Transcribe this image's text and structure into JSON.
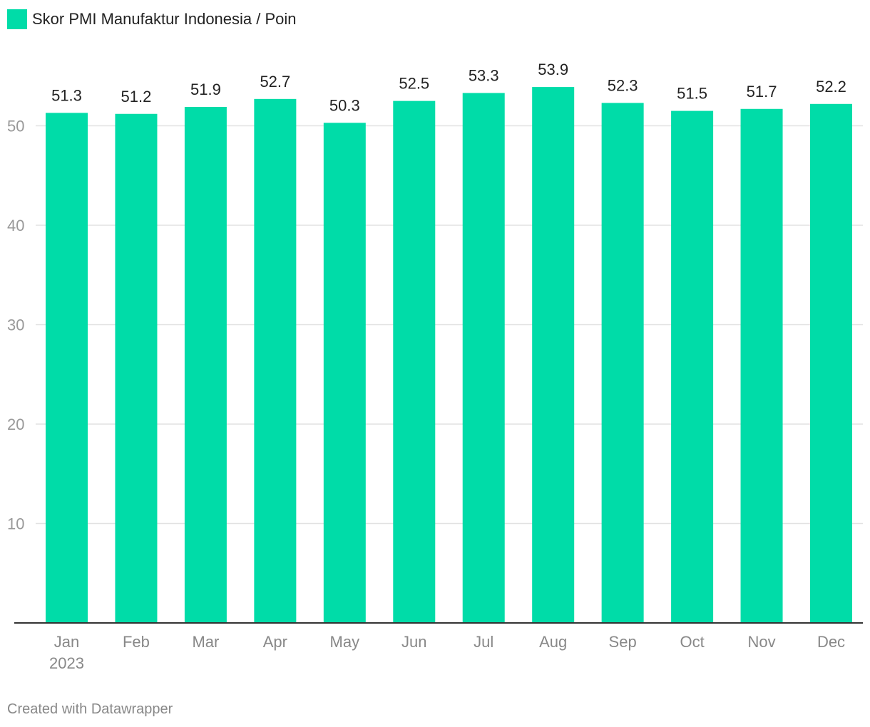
{
  "legend": {
    "label": "Skor PMI Manufaktur Indonesia / Poin"
  },
  "footer": {
    "credit": "Created with Datawrapper"
  },
  "colors": {
    "bar": "#00dca8",
    "grid": "#e2e2e2",
    "baseline": "#333333"
  },
  "chart_data": {
    "type": "bar",
    "categories": [
      "Jan",
      "Feb",
      "Mar",
      "Apr",
      "May",
      "Jun",
      "Jul",
      "Aug",
      "Sep",
      "Oct",
      "Nov",
      "Dec"
    ],
    "category_sublabels": [
      "2023",
      "",
      "",
      "",
      "",
      "",
      "",
      "",
      "",
      "",
      "",
      ""
    ],
    "series": [
      {
        "name": "Skor PMI Manufaktur Indonesia / Poin",
        "values": [
          51.3,
          51.2,
          51.9,
          52.7,
          50.3,
          52.5,
          53.3,
          53.9,
          52.3,
          51.5,
          51.7,
          52.2
        ]
      }
    ],
    "yticks": [
      10,
      20,
      30,
      40,
      50
    ],
    "ylim": [
      0,
      54
    ],
    "grid": true,
    "legend_position": "top-left",
    "data_labels": true
  }
}
